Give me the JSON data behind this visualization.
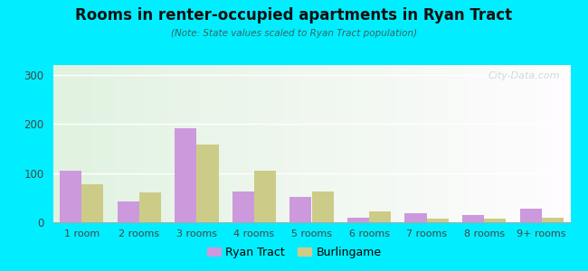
{
  "title": "Rooms in renter-occupied apartments in Ryan Tract",
  "subtitle": "(Note: State values scaled to Ryan Tract population)",
  "categories": [
    "1 room",
    "2 rooms",
    "3 rooms",
    "4 rooms",
    "5 rooms",
    "6 rooms",
    "7 rooms",
    "8 rooms",
    "9+ rooms"
  ],
  "ryan_tract": [
    105,
    42,
    192,
    62,
    52,
    10,
    18,
    15,
    27
  ],
  "burlingame": [
    78,
    60,
    158,
    105,
    62,
    22,
    8,
    8,
    10
  ],
  "ryan_color": "#cc99dd",
  "burlingame_color": "#cccc88",
  "bar_width": 0.38,
  "ylim": [
    0,
    320
  ],
  "yticks": [
    0,
    100,
    200,
    300
  ],
  "outer_bg": "#00eeff",
  "legend_ryan": "Ryan Tract",
  "legend_burlingame": "Burlingame",
  "title_color": "#111111",
  "subtitle_color": "#336666",
  "tick_color": "#444444",
  "watermark": "City-Data.com"
}
